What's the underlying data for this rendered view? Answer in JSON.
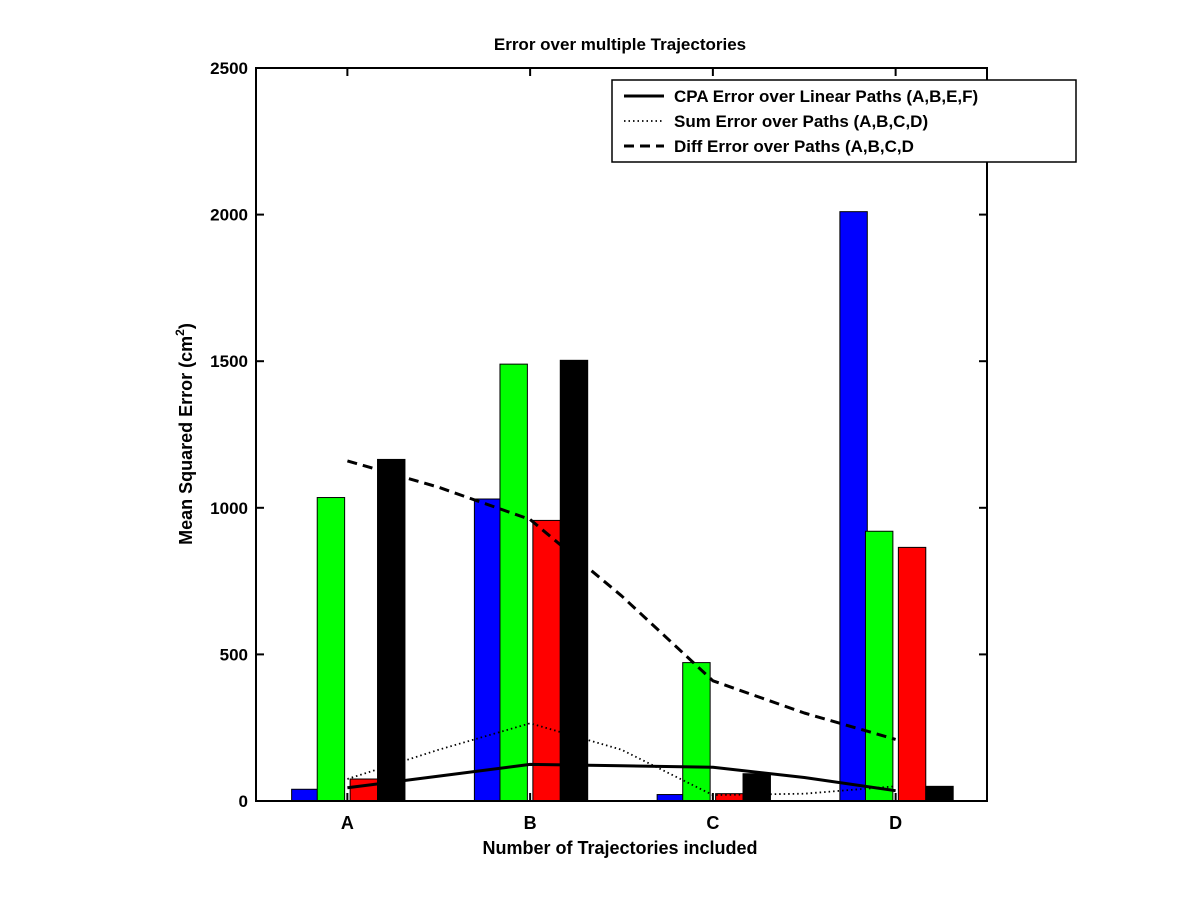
{
  "chart_data": {
    "type": "bar",
    "title": "Error over multiple Trajectories",
    "xlabel": "Number of Trajectories included",
    "ylabel_main": "Mean Squared Error (cm",
    "ylabel_sup": "2",
    "ylabel_tail": ")",
    "ylim": [
      0,
      2500
    ],
    "yticks": [
      0,
      500,
      1000,
      1500,
      2000,
      2500
    ],
    "categories": [
      "A",
      "B",
      "C",
      "D"
    ],
    "grid": false,
    "legend_position": "top-right",
    "bar_series": [
      {
        "color": "#0000ff",
        "values": [
          40,
          1030,
          22,
          2010
        ]
      },
      {
        "color": "#00ff00",
        "values": [
          1035,
          1490,
          472,
          920
        ]
      },
      {
        "color": "#ff0000",
        "values": [
          75,
          957,
          25,
          865
        ]
      },
      {
        "color": "#000000",
        "values": [
          1165,
          1503,
          93,
          50
        ]
      }
    ],
    "line_series": [
      {
        "name": "CPA Error over Linear Paths (A,B,E,F)",
        "style": "solid",
        "color": "#000000",
        "x": [
          1,
          1.5,
          2,
          2.5,
          3,
          3.5,
          4
        ],
        "y": [
          45,
          85,
          125,
          120,
          115,
          80,
          35
        ]
      },
      {
        "name": "Sum Error over Paths (A,B,C,D)",
        "style": "dotted",
        "color": "#000000",
        "x": [
          1,
          1.5,
          2,
          2.5,
          3,
          3.5,
          4
        ],
        "y": [
          75,
          175,
          265,
          175,
          20,
          25,
          50
        ]
      },
      {
        "name": "Diff Error over Paths (A,B,C,D",
        "style": "dashed",
        "color": "#000000",
        "x": [
          1,
          1.5,
          2,
          2.5,
          3,
          3.5,
          4
        ],
        "y": [
          1160,
          1070,
          960,
          700,
          410,
          300,
          210
        ]
      }
    ]
  }
}
